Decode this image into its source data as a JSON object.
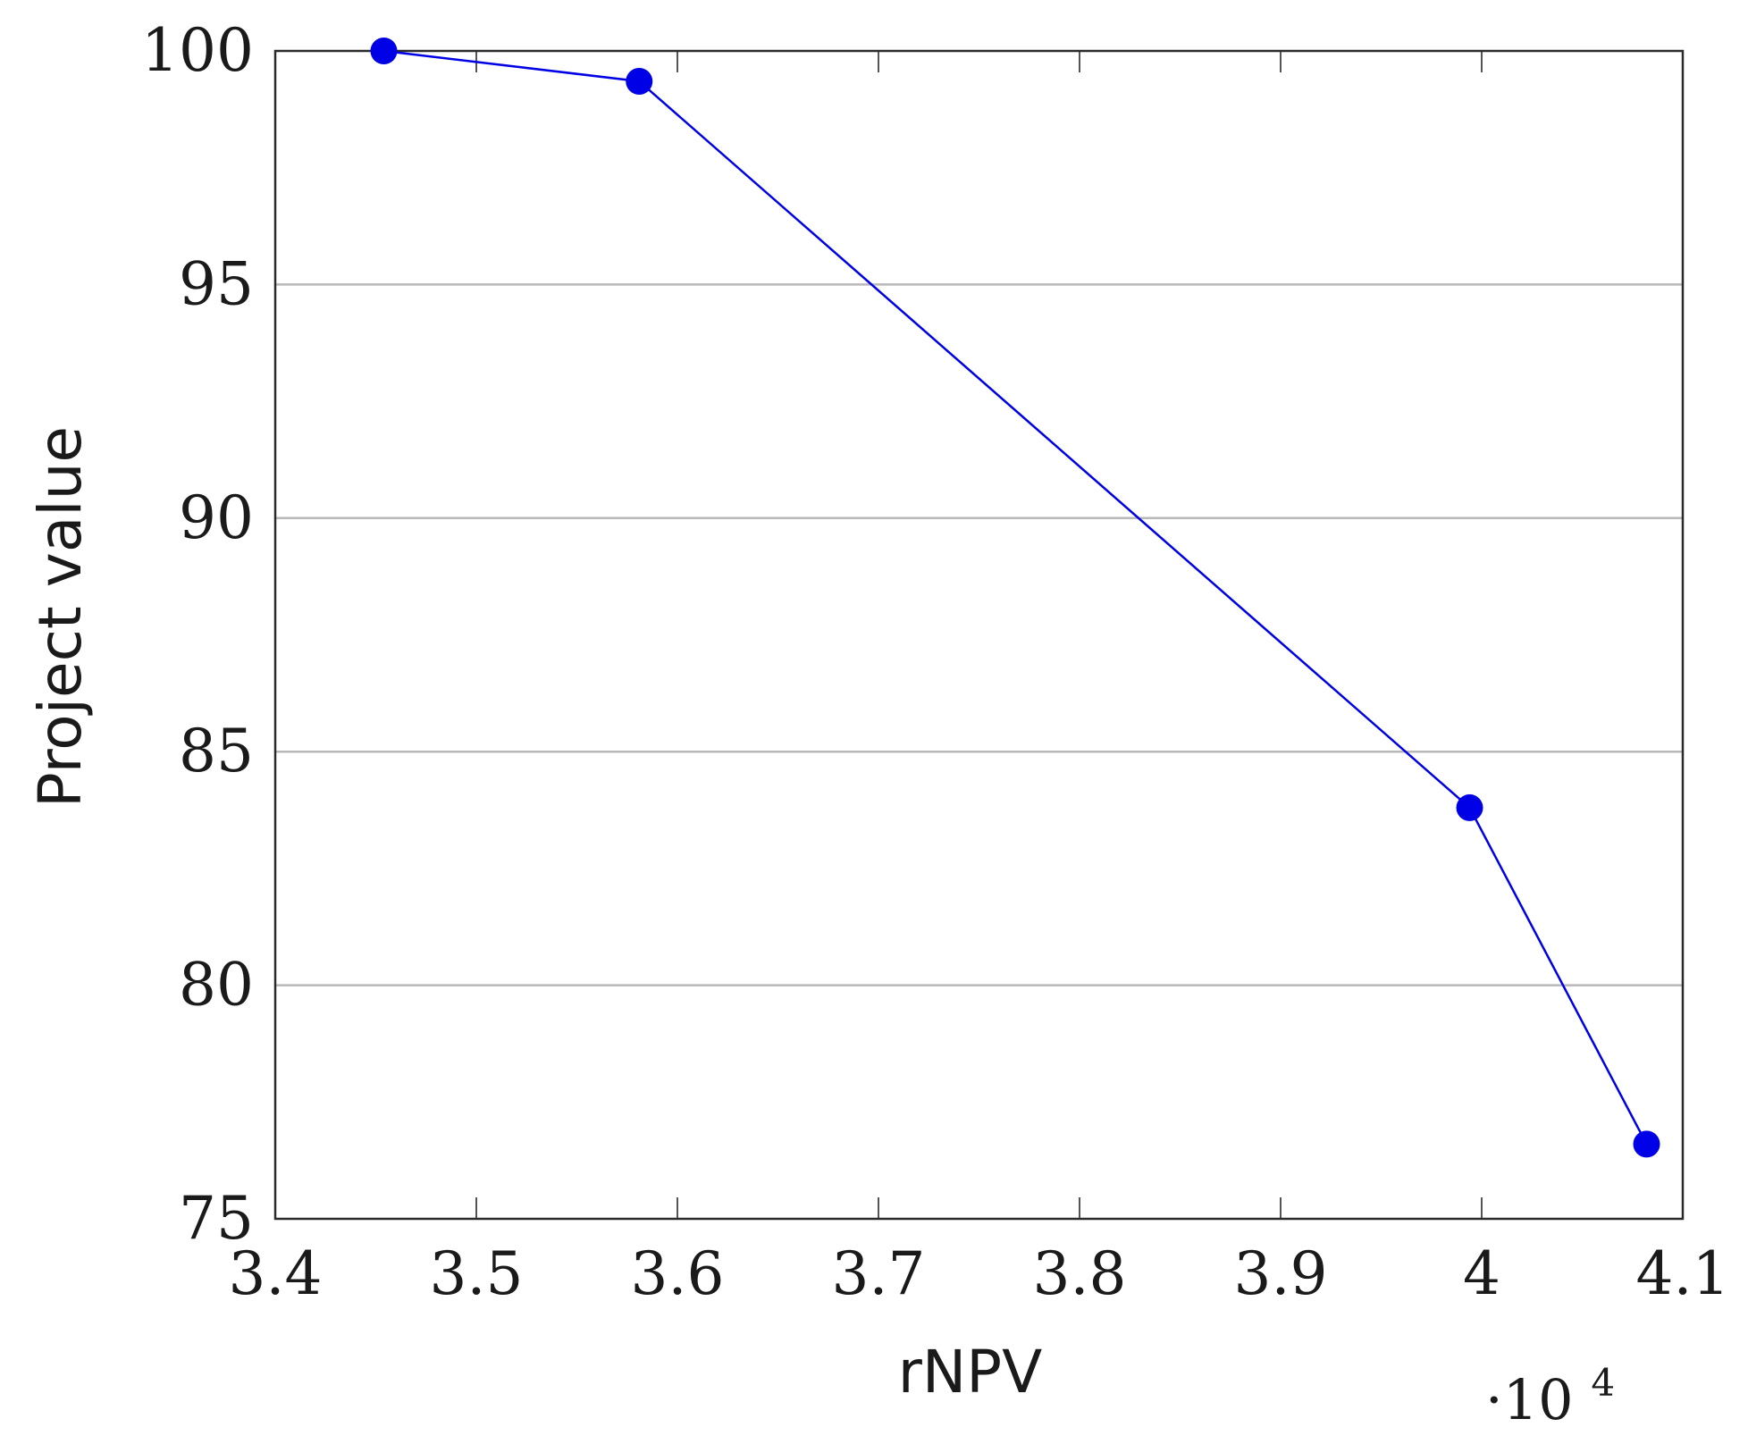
{
  "chart_data": {
    "type": "line",
    "title": "",
    "xlabel": "rNPV",
    "ylabel": "Project value",
    "x_multiplier": {
      "base": "·10",
      "exponent": "4"
    },
    "xlim": [
      3.4,
      4.1
    ],
    "ylim": [
      75,
      100
    ],
    "x_ticks": [
      3.4,
      3.5,
      3.6,
      3.7,
      3.8,
      3.9,
      4,
      4.1
    ],
    "x_tick_labels": [
      "3.4",
      "3.5",
      "3.6",
      "3.7",
      "3.8",
      "3.9",
      "4",
      "4.1"
    ],
    "y_ticks": [
      75,
      80,
      85,
      90,
      95,
      100
    ],
    "y_tick_labels": [
      "75",
      "80",
      "85",
      "90",
      "95",
      "100"
    ],
    "grid": "y-major",
    "series": [
      {
        "color": "#0000e6",
        "marker": "circle",
        "x": [
          3.454,
          3.581,
          3.994,
          4.082
        ],
        "y": [
          100,
          99.35,
          83.8,
          76.6
        ]
      }
    ]
  }
}
